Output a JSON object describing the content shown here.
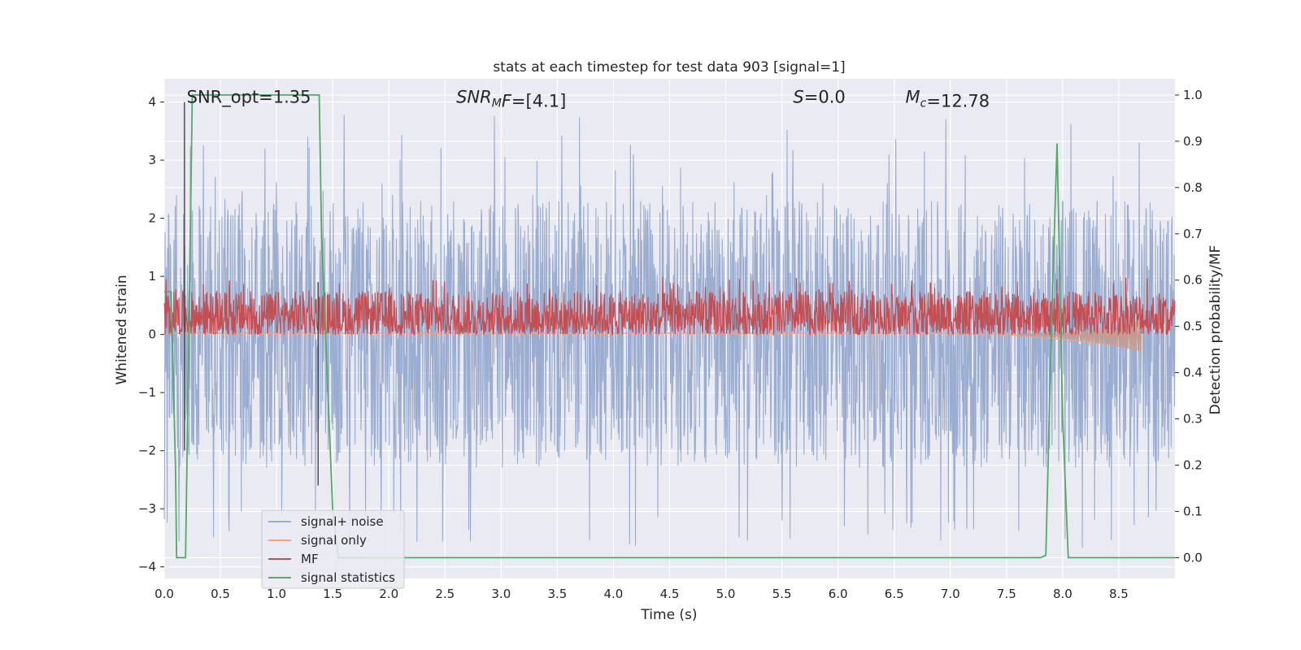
{
  "chart_data": {
    "type": "line",
    "title": "stats at each timestep for test data 903 [signal=1]",
    "xlabel": "Time (s)",
    "ylabel": "Whitened strain",
    "y2label": "Detection probability/MF",
    "xlim": [
      0,
      9.0
    ],
    "ylim": [
      -4.2,
      4.4
    ],
    "y2lim": [
      -0.045,
      1.035
    ],
    "x_ticks": [
      0.0,
      0.5,
      1.0,
      1.5,
      2.0,
      2.5,
      3.0,
      3.5,
      4.0,
      4.5,
      5.0,
      5.5,
      6.0,
      6.5,
      7.0,
      7.5,
      8.0,
      8.5
    ],
    "x_tick_labels": [
      "0.0",
      "0.5",
      "1.0",
      "1.5",
      "2.0",
      "2.5",
      "3.0",
      "3.5",
      "4.0",
      "4.5",
      "5.0",
      "5.5",
      "6.0",
      "6.5",
      "7.0",
      "7.5",
      "8.0",
      "8.5"
    ],
    "y_ticks": [
      -4,
      -3,
      -2,
      -1,
      0,
      1,
      2,
      3,
      4
    ],
    "y_tick_labels": [
      "−4",
      "−3",
      "−2",
      "−1",
      "0",
      "1",
      "2",
      "3",
      "4"
    ],
    "y2_ticks": [
      0.0,
      0.1,
      0.2,
      0.3,
      0.4,
      0.5,
      0.6,
      0.7,
      0.8,
      0.9,
      1.0
    ],
    "y2_tick_labels": [
      "0.0",
      "0.1",
      "0.2",
      "0.3",
      "0.4",
      "0.5",
      "0.6",
      "0.7",
      "0.8",
      "0.9",
      "1.0"
    ],
    "grid": true,
    "legend_position": "bottom-left",
    "annotations": [
      {
        "x": 0.2,
        "label_plain": "SNR_opt=1.35"
      },
      {
        "x": 2.6,
        "label_italic": "SNR",
        "label_sub": "M",
        "label_rest_italic": "F",
        "label_plain": "=[4.1]"
      },
      {
        "x": 5.6,
        "label_italic": "S",
        "label_plain": "=0.0"
      },
      {
        "x": 6.6,
        "label_italic": "M",
        "label_sub": "c",
        "label_plain": "=12.78"
      }
    ],
    "series": [
      {
        "name": "signal+ noise",
        "color": "#9aacd0",
        "axis": "left",
        "style": "dense-noise",
        "x_range": [
          0,
          9.0
        ],
        "envelope_low": -2.3,
        "envelope_high": 2.3,
        "extreme_low": -3.7,
        "extreme_high": 3.8
      },
      {
        "name": "signal only",
        "color": "#e7a58c",
        "axis": "left",
        "x": [
          0.0,
          6.5,
          7.0,
          7.5,
          7.8,
          8.0,
          8.2,
          8.4,
          8.6,
          8.7
        ],
        "y": [
          0.02,
          0.02,
          0.02,
          0.0,
          -0.05,
          -0.08,
          -0.12,
          -0.17,
          -0.22,
          -0.25
        ]
      },
      {
        "name": "MF",
        "color": "#c44e52",
        "axis": "left",
        "style": "dense-noise",
        "x_range": [
          0,
          9.0
        ],
        "envelope_low": 0.0,
        "envelope_high": 0.75,
        "extreme_low": 0.0,
        "extreme_high": 1.0
      },
      {
        "name": "signal statistics",
        "color": "#55a868",
        "axis": "right",
        "x": [
          0.0,
          0.06,
          0.1,
          0.11,
          0.18,
          0.19,
          0.25,
          0.3,
          1.35,
          1.38,
          1.4,
          1.5,
          1.55,
          7.8,
          7.85,
          7.9,
          7.95,
          8.0,
          8.05,
          9.0
        ],
        "y": [
          0.575,
          0.575,
          0.2,
          0.0,
          0.0,
          0.0,
          1.0,
          1.0,
          1.0,
          1.0,
          0.7,
          0.1,
          0.0,
          0.0,
          0.005,
          0.5,
          0.895,
          0.3,
          0.0,
          0.0
        ]
      },
      {
        "name": "event marker",
        "color": "#444444",
        "axis": "left",
        "style": "vertical-lines",
        "x": [
          0.18,
          1.37
        ],
        "y_top": [
          4.0,
          0.9
        ],
        "y_bottom": [
          -2.0,
          -2.6
        ]
      }
    ],
    "legend": [
      "signal+ noise",
      "signal only",
      "MF",
      "signal statistics"
    ]
  }
}
